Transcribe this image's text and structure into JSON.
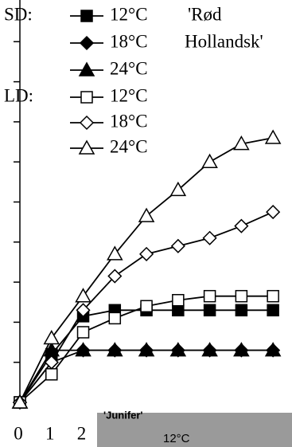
{
  "chart_data": {
    "type": "line",
    "annotation": [
      "'Rød",
      "Hollandsk'"
    ],
    "legend_groups": [
      "SD:",
      "LD:"
    ],
    "x": [
      0,
      1,
      2,
      3,
      4,
      5,
      6,
      7,
      8
    ],
    "xlim": [
      0,
      8.6
    ],
    "xticks": [
      0,
      1,
      2
    ],
    "ylim": [
      0,
      10
    ],
    "yticks": [
      0,
      1,
      2,
      3,
      4,
      5,
      6,
      7,
      8,
      9
    ],
    "series": [
      {
        "name": "12°C",
        "group": "SD:",
        "marker": "square",
        "filled": true,
        "color": "#000000",
        "values": [
          0,
          1.2,
          2.15,
          2.3,
          2.3,
          2.3,
          2.3,
          2.3,
          2.3
        ]
      },
      {
        "name": "18°C",
        "group": "SD:",
        "marker": "diamond",
        "filled": true,
        "color": "#000000",
        "values": [
          0,
          1.0,
          1.3,
          1.3,
          1.3,
          1.3,
          1.3,
          1.3,
          1.3
        ]
      },
      {
        "name": "24°C",
        "group": "SD:",
        "marker": "triangle",
        "filled": true,
        "color": "#000000",
        "values": [
          0,
          1.3,
          1.3,
          1.3,
          1.3,
          1.3,
          1.3,
          1.3,
          1.3
        ]
      },
      {
        "name": "12°C",
        "group": "LD:",
        "marker": "square",
        "filled": false,
        "color": "#000000",
        "values": [
          0,
          0.7,
          1.75,
          2.1,
          2.4,
          2.55,
          2.65,
          2.65,
          2.65
        ]
      },
      {
        "name": "18°C",
        "group": "LD:",
        "marker": "diamond",
        "filled": false,
        "color": "#000000",
        "values": [
          0,
          1.0,
          2.3,
          3.15,
          3.7,
          3.9,
          4.1,
          4.4,
          4.75
        ]
      },
      {
        "name": "24°C",
        "group": "LD:",
        "marker": "triangle",
        "filled": false,
        "color": "#000000",
        "values": [
          0,
          1.6,
          2.65,
          3.7,
          4.65,
          5.3,
          6.0,
          6.45,
          6.6
        ]
      }
    ]
  },
  "inset": {
    "title": "'Junifer'",
    "label": "12°C"
  }
}
